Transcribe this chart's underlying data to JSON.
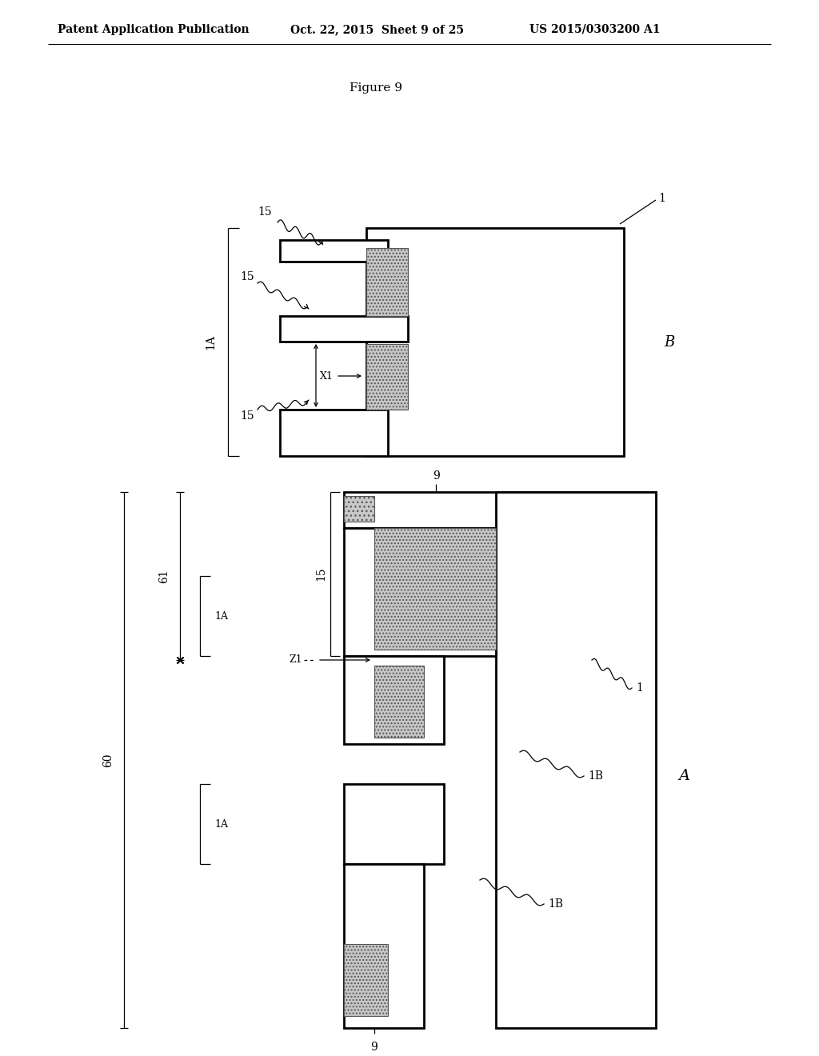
{
  "bg_color": "#ffffff",
  "header_left": "Patent Application Publication",
  "header_mid": "Oct. 22, 2015  Sheet 9 of 25",
  "header_right": "US 2015/0303200 A1",
  "figure_title": "Figure 9",
  "lw": 2.0,
  "tlw": 0.9,
  "lc": "#000000"
}
